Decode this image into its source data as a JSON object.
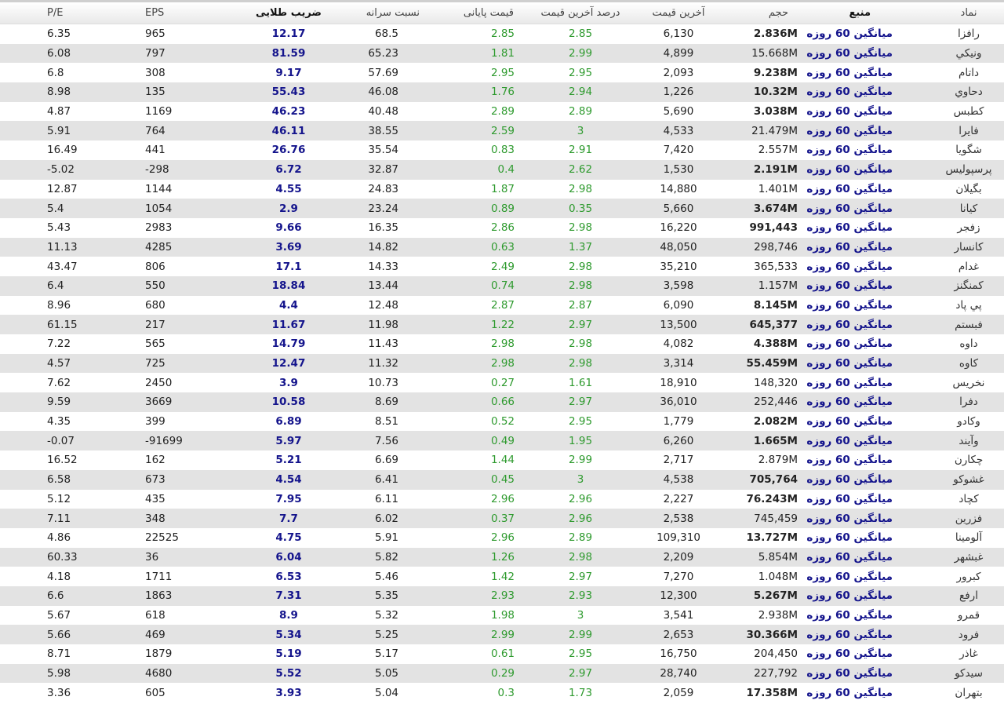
{
  "headers": {
    "pe": "P/E",
    "eps": "EPS",
    "golden": "ضریب طلایی",
    "per_capita": "نسبت سرانه",
    "close_price": "قیمت پایانی",
    "last_pct": "درصد آخرین قیمت",
    "last_price": "آخرین قیمت",
    "volume": "حجم",
    "source": "منبع",
    "symbol": "نماد"
  },
  "colors": {
    "green": "#2e9a2e",
    "blue": "#14148c",
    "alt_row": "#e3e3e3"
  },
  "rows": [
    {
      "symbol": "رافزا",
      "source": "میانگین 60 روزه",
      "volume": "2.836M",
      "volume_bold": true,
      "last_price": "6,130",
      "last_pct": "2.85",
      "close_price": "2.85",
      "per_capita": "68.5",
      "golden": "12.17",
      "eps": "965",
      "pe": "6.35"
    },
    {
      "symbol": "ونيكي",
      "source": "میانگین 60 روزه",
      "volume": "15.668M",
      "volume_bold": false,
      "last_price": "4,899",
      "last_pct": "2.99",
      "close_price": "1.81",
      "per_capita": "65.23",
      "golden": "81.59",
      "eps": "797",
      "pe": "6.08"
    },
    {
      "symbol": "داتام",
      "source": "میانگین 60 روزه",
      "volume": "9.238M",
      "volume_bold": true,
      "last_price": "2,093",
      "last_pct": "2.95",
      "close_price": "2.95",
      "per_capita": "57.69",
      "golden": "9.17",
      "eps": "308",
      "pe": "6.8"
    },
    {
      "symbol": "دحاوي",
      "source": "میانگین 60 روزه",
      "volume": "10.32M",
      "volume_bold": true,
      "last_price": "1,226",
      "last_pct": "2.94",
      "close_price": "1.76",
      "per_capita": "46.08",
      "golden": "55.43",
      "eps": "135",
      "pe": "8.98"
    },
    {
      "symbol": "كطبس",
      "source": "میانگین 60 روزه",
      "volume": "3.038M",
      "volume_bold": true,
      "last_price": "5,690",
      "last_pct": "2.89",
      "close_price": "2.89",
      "per_capita": "40.48",
      "golden": "46.23",
      "eps": "1169",
      "pe": "4.87"
    },
    {
      "symbol": "فايرا",
      "source": "میانگین 60 روزه",
      "volume": "21.479M",
      "volume_bold": false,
      "last_price": "4,533",
      "last_pct": "3",
      "close_price": "2.59",
      "per_capita": "38.55",
      "golden": "46.11",
      "eps": "764",
      "pe": "5.91"
    },
    {
      "symbol": "شگويا",
      "source": "میانگین 60 روزه",
      "volume": "2.557M",
      "volume_bold": false,
      "last_price": "7,420",
      "last_pct": "2.91",
      "close_price": "0.83",
      "per_capita": "35.54",
      "golden": "26.76",
      "eps": "441",
      "pe": "16.49"
    },
    {
      "symbol": "پرسپوليس",
      "source": "میانگین 60 روزه",
      "volume": "2.191M",
      "volume_bold": true,
      "last_price": "1,530",
      "last_pct": "2.62",
      "close_price": "0.4",
      "per_capita": "32.87",
      "golden": "6.72",
      "eps": "-298",
      "pe": "-5.02"
    },
    {
      "symbol": "بگيلان",
      "source": "میانگین 60 روزه",
      "volume": "1.401M",
      "volume_bold": false,
      "last_price": "14,880",
      "last_pct": "2.98",
      "close_price": "1.87",
      "per_capita": "24.83",
      "golden": "4.55",
      "eps": "1144",
      "pe": "12.87"
    },
    {
      "symbol": "كيانا",
      "source": "میانگین 60 روزه",
      "volume": "3.674M",
      "volume_bold": true,
      "last_price": "5,660",
      "last_pct": "0.35",
      "close_price": "0.89",
      "per_capita": "23.24",
      "golden": "2.9",
      "eps": "1054",
      "pe": "5.4"
    },
    {
      "symbol": "زفجر",
      "source": "میانگین 60 روزه",
      "volume": "991,443",
      "volume_bold": true,
      "last_price": "16,220",
      "last_pct": "2.98",
      "close_price": "2.86",
      "per_capita": "16.35",
      "golden": "9.66",
      "eps": "2983",
      "pe": "5.43"
    },
    {
      "symbol": "كانسار",
      "source": "میانگین 60 روزه",
      "volume": "298,746",
      "volume_bold": false,
      "last_price": "48,050",
      "last_pct": "1.37",
      "close_price": "0.63",
      "per_capita": "14.82",
      "golden": "3.69",
      "eps": "4285",
      "pe": "11.13"
    },
    {
      "symbol": "غدام",
      "source": "میانگین 60 روزه",
      "volume": "365,533",
      "volume_bold": false,
      "last_price": "35,210",
      "last_pct": "2.98",
      "close_price": "2.49",
      "per_capita": "14.33",
      "golden": "17.1",
      "eps": "806",
      "pe": "43.47"
    },
    {
      "symbol": "كمنگنز",
      "source": "میانگین 60 روزه",
      "volume": "1.157M",
      "volume_bold": false,
      "last_price": "3,598",
      "last_pct": "2.98",
      "close_price": "0.74",
      "per_capita": "13.44",
      "golden": "18.84",
      "eps": "550",
      "pe": "6.4"
    },
    {
      "symbol": "پي پاد",
      "source": "میانگین 60 روزه",
      "volume": "8.145M",
      "volume_bold": true,
      "last_price": "6,090",
      "last_pct": "2.87",
      "close_price": "2.87",
      "per_capita": "12.48",
      "golden": "4.4",
      "eps": "680",
      "pe": "8.96"
    },
    {
      "symbol": "فبستم",
      "source": "میانگین 60 روزه",
      "volume": "645,377",
      "volume_bold": true,
      "last_price": "13,500",
      "last_pct": "2.97",
      "close_price": "1.22",
      "per_capita": "11.98",
      "golden": "11.67",
      "eps": "217",
      "pe": "61.15"
    },
    {
      "symbol": "داوه",
      "source": "میانگین 60 روزه",
      "volume": "4.388M",
      "volume_bold": true,
      "last_price": "4,082",
      "last_pct": "2.98",
      "close_price": "2.98",
      "per_capita": "11.43",
      "golden": "14.79",
      "eps": "565",
      "pe": "7.22"
    },
    {
      "symbol": "كاوه",
      "source": "میانگین 60 روزه",
      "volume": "55.459M",
      "volume_bold": true,
      "last_price": "3,314",
      "last_pct": "2.98",
      "close_price": "2.98",
      "per_capita": "11.32",
      "golden": "12.47",
      "eps": "725",
      "pe": "4.57"
    },
    {
      "symbol": "نخريس",
      "source": "میانگین 60 روزه",
      "volume": "148,320",
      "volume_bold": false,
      "last_price": "18,910",
      "last_pct": "1.61",
      "close_price": "0.27",
      "per_capita": "10.73",
      "golden": "3.9",
      "eps": "2450",
      "pe": "7.62"
    },
    {
      "symbol": "دفرا",
      "source": "میانگین 60 روزه",
      "volume": "252,446",
      "volume_bold": false,
      "last_price": "36,010",
      "last_pct": "2.97",
      "close_price": "0.66",
      "per_capita": "8.69",
      "golden": "10.58",
      "eps": "3669",
      "pe": "9.59"
    },
    {
      "symbol": "وكادو",
      "source": "میانگین 60 روزه",
      "volume": "2.082M",
      "volume_bold": true,
      "last_price": "1,779",
      "last_pct": "2.95",
      "close_price": "0.52",
      "per_capita": "8.51",
      "golden": "6.89",
      "eps": "399",
      "pe": "4.35"
    },
    {
      "symbol": "وآيند",
      "source": "میانگین 60 روزه",
      "volume": "1.665M",
      "volume_bold": true,
      "last_price": "6,260",
      "last_pct": "1.95",
      "close_price": "0.49",
      "per_capita": "7.56",
      "golden": "5.97",
      "eps": "-91699",
      "pe": "-0.07"
    },
    {
      "symbol": "چكارن",
      "source": "میانگین 60 روزه",
      "volume": "2.879M",
      "volume_bold": false,
      "last_price": "2,717",
      "last_pct": "2.99",
      "close_price": "1.44",
      "per_capita": "6.69",
      "golden": "5.21",
      "eps": "162",
      "pe": "16.52"
    },
    {
      "symbol": "غشوكو",
      "source": "میانگین 60 روزه",
      "volume": "705,764",
      "volume_bold": true,
      "last_price": "4,538",
      "last_pct": "3",
      "close_price": "0.45",
      "per_capita": "6.41",
      "golden": "4.54",
      "eps": "673",
      "pe": "6.58"
    },
    {
      "symbol": "كچاد",
      "source": "میانگین 60 روزه",
      "volume": "76.243M",
      "volume_bold": true,
      "last_price": "2,227",
      "last_pct": "2.96",
      "close_price": "2.96",
      "per_capita": "6.11",
      "golden": "7.95",
      "eps": "435",
      "pe": "5.12"
    },
    {
      "symbol": "فزرين",
      "source": "میانگین 60 روزه",
      "volume": "745,459",
      "volume_bold": false,
      "last_price": "2,538",
      "last_pct": "2.96",
      "close_price": "0.37",
      "per_capita": "6.02",
      "golden": "7.7",
      "eps": "348",
      "pe": "7.11"
    },
    {
      "symbol": "آلومينا",
      "source": "میانگین 60 روزه",
      "volume": "13.727M",
      "volume_bold": true,
      "last_price": "109,310",
      "last_pct": "2.89",
      "close_price": "2.96",
      "per_capita": "5.91",
      "golden": "4.75",
      "eps": "22525",
      "pe": "4.86"
    },
    {
      "symbol": "غبشهر",
      "source": "میانگین 60 روزه",
      "volume": "5.854M",
      "volume_bold": false,
      "last_price": "2,209",
      "last_pct": "2.98",
      "close_price": "1.26",
      "per_capita": "5.82",
      "golden": "6.04",
      "eps": "36",
      "pe": "60.33"
    },
    {
      "symbol": "كبرور",
      "source": "میانگین 60 روزه",
      "volume": "1.048M",
      "volume_bold": false,
      "last_price": "7,270",
      "last_pct": "2.97",
      "close_price": "1.42",
      "per_capita": "5.46",
      "golden": "6.53",
      "eps": "1711",
      "pe": "4.18"
    },
    {
      "symbol": "ارفع",
      "source": "میانگین 60 روزه",
      "volume": "5.267M",
      "volume_bold": true,
      "last_price": "12,300",
      "last_pct": "2.93",
      "close_price": "2.93",
      "per_capita": "5.35",
      "golden": "7.31",
      "eps": "1863",
      "pe": "6.6"
    },
    {
      "symbol": "قمرو",
      "source": "میانگین 60 روزه",
      "volume": "2.938M",
      "volume_bold": false,
      "last_price": "3,541",
      "last_pct": "3",
      "close_price": "1.98",
      "per_capita": "5.32",
      "golden": "8.9",
      "eps": "618",
      "pe": "5.67"
    },
    {
      "symbol": "فرود",
      "source": "میانگین 60 روزه",
      "volume": "30.366M",
      "volume_bold": true,
      "last_price": "2,653",
      "last_pct": "2.99",
      "close_price": "2.99",
      "per_capita": "5.25",
      "golden": "5.34",
      "eps": "469",
      "pe": "5.66"
    },
    {
      "symbol": "غاذر",
      "source": "میانگین 60 روزه",
      "volume": "204,450",
      "volume_bold": false,
      "last_price": "16,750",
      "last_pct": "2.95",
      "close_price": "0.61",
      "per_capita": "5.17",
      "golden": "5.19",
      "eps": "1879",
      "pe": "8.71"
    },
    {
      "symbol": "سيدكو",
      "source": "میانگین 60 روزه",
      "volume": "227,792",
      "volume_bold": false,
      "last_price": "28,740",
      "last_pct": "2.97",
      "close_price": "0.29",
      "per_capita": "5.05",
      "golden": "5.52",
      "eps": "4680",
      "pe": "5.98"
    },
    {
      "symbol": "بتهران",
      "source": "میانگین 60 روزه",
      "volume": "17.358M",
      "volume_bold": true,
      "last_price": "2,059",
      "last_pct": "1.73",
      "close_price": "0.3",
      "per_capita": "5.04",
      "golden": "3.93",
      "eps": "605",
      "pe": "3.36"
    }
  ]
}
